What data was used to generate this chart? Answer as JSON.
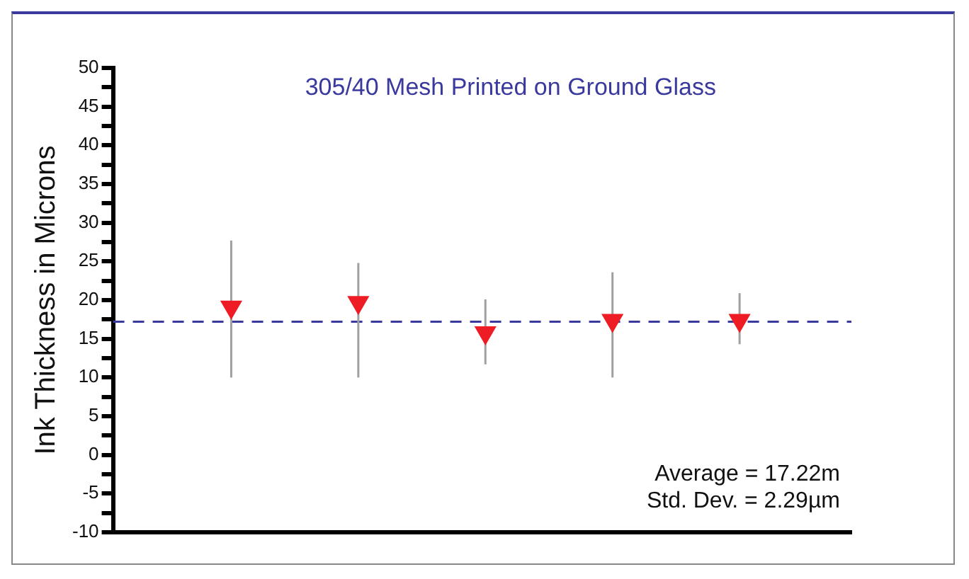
{
  "chart_data": {
    "type": "scatter",
    "title": "305/40 Mesh Printed on Ground Glass",
    "ylabel": "Ink Thickness in Microns",
    "categories": [
      null,
      null,
      null,
      null,
      null
    ],
    "series": [
      {
        "color": "#ee1c25",
        "values": [
          19.1,
          19.7,
          15.8,
          17.4,
          17.4
        ],
        "errors": [
          [
            10,
            27.7
          ],
          [
            10,
            24.8
          ],
          [
            11.7,
            20.1
          ],
          [
            10,
            23.6
          ],
          [
            14.3,
            20.9
          ]
        ]
      }
    ],
    "ylim": [
      -10,
      50
    ],
    "yticks": [
      -10,
      {
        "value": -7.5,
        "label": null
      },
      -5,
      {
        "value": -2.5,
        "label": null
      },
      0,
      {
        "value": 2.5,
        "label": null
      },
      5,
      {
        "value": 7.5,
        "label": null
      },
      10,
      {
        "value": 12.5,
        "label": null
      },
      15,
      {
        "value": 17.5,
        "label": null
      },
      20,
      {
        "value": 22.5,
        "label": null
      },
      25,
      {
        "value": 27.5,
        "label": null
      },
      30,
      {
        "value": 32.5,
        "label": null
      },
      35,
      {
        "value": 37.5,
        "label": null
      },
      40,
      {
        "value": 42.5,
        "label": null
      },
      45,
      {
        "value": 47.5,
        "label": null
      },
      50
    ],
    "ref_lines": [
      {
        "axis": "y",
        "value": 17.22,
        "color": "#3a3a9e",
        "line_style": "dashed"
      }
    ],
    "annotations": [
      "Average = 17.22m",
      "Std. Dev. = 2.29µm"
    ],
    "marker": "triangle",
    "grid": false,
    "legend": false
  }
}
